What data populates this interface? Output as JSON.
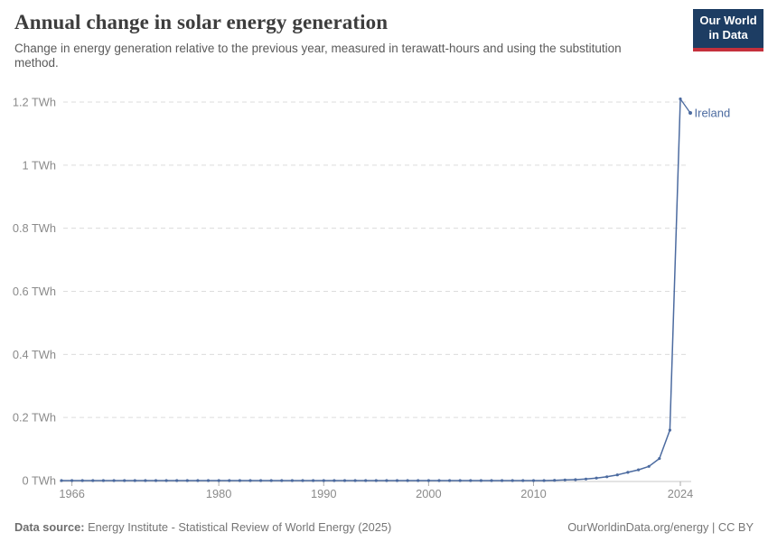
{
  "header": {
    "title": "Annual change in solar energy generation",
    "subtitle": "Change in energy generation relative to the previous year, measured in terawatt-hours and using the substitution method.",
    "logo": {
      "line1": "Our World",
      "line2": "in Data"
    }
  },
  "footer": {
    "source_label": "Data source:",
    "source_text": "Energy Institute - Statistical Review of World Energy (2025)",
    "credit": "OurWorldinData.org/energy | CC BY"
  },
  "chart_data": {
    "type": "line",
    "title": "Annual change in solar energy generation",
    "unit": "TWh",
    "entity_label": "Ireland",
    "line_color": "#4c6ba0",
    "grid": true,
    "legend_position": "inline-end-of-line",
    "x": [
      1965,
      1966,
      1967,
      1968,
      1969,
      1970,
      1971,
      1972,
      1973,
      1974,
      1975,
      1976,
      1977,
      1978,
      1979,
      1980,
      1981,
      1982,
      1983,
      1984,
      1985,
      1986,
      1987,
      1988,
      1989,
      1990,
      1991,
      1992,
      1993,
      1994,
      1995,
      1996,
      1997,
      1998,
      1999,
      2000,
      2001,
      2002,
      2003,
      2004,
      2005,
      2006,
      2007,
      2008,
      2009,
      2010,
      2011,
      2012,
      2013,
      2014,
      2015,
      2016,
      2017,
      2018,
      2019,
      2020,
      2021,
      2022,
      2023,
      2024
    ],
    "series": [
      {
        "name": "Ireland",
        "values": [
          0,
          0,
          0,
          0,
          0,
          0,
          0,
          0,
          0,
          0,
          0,
          0,
          0,
          0,
          0,
          0,
          0,
          0,
          0,
          0,
          0,
          0,
          0,
          0,
          0,
          0,
          0,
          0,
          0,
          0,
          0,
          0,
          0,
          0,
          0,
          0,
          0,
          0,
          0,
          0,
          0,
          0,
          0,
          0,
          0,
          0,
          0,
          0.001,
          0.002,
          0.003,
          0.005,
          0.008,
          0.012,
          0.018,
          0.026,
          0.034,
          0.045,
          0.07,
          0.16,
          1.21
        ]
      }
    ],
    "xlim": [
      1965,
      2024
    ],
    "ylim": [
      0,
      1.2
    ],
    "xticks": [
      1966,
      1980,
      1990,
      2000,
      2010,
      2024
    ],
    "yticks": {
      "values": [
        0,
        0.2,
        0.4,
        0.6,
        0.8,
        1,
        1.2
      ],
      "labels": [
        "0 TWh",
        "0.2 TWh",
        "0.4 TWh",
        "0.6 TWh",
        "0.8 TWh",
        "1 TWh",
        "1.2 TWh"
      ]
    }
  }
}
